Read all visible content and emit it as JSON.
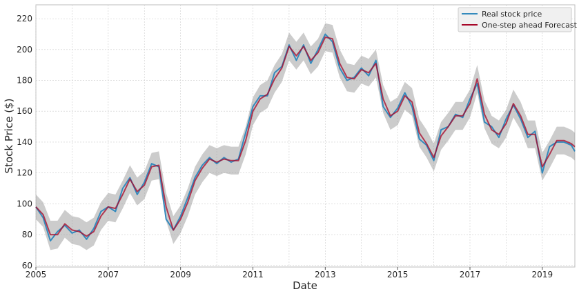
{
  "chart_data": {
    "type": "line",
    "xlabel": "Date",
    "ylabel": "Stock Price ($)",
    "ylim": [
      59,
      229
    ],
    "xlim": [
      2005.0,
      2019.9
    ],
    "grid": true,
    "legend_position": "top-right",
    "x_ticks": [
      "2005",
      "2007",
      "2009",
      "2011",
      "2013",
      "2015",
      "2017",
      "2019"
    ],
    "x_tick_values": [
      2005,
      2007,
      2009,
      2011,
      2013,
      2015,
      2017,
      2019
    ],
    "y_ticks": [
      "60",
      "80",
      "100",
      "120",
      "140",
      "160",
      "180",
      "200",
      "220"
    ],
    "y_tick_values": [
      60,
      80,
      100,
      120,
      140,
      160,
      180,
      200,
      220
    ],
    "series": [
      {
        "name": "Real stock price",
        "color": "#348abd",
        "x": [
          2005.0,
          2005.2,
          2005.4,
          2005.6,
          2005.8,
          2006.0,
          2006.2,
          2006.4,
          2006.6,
          2006.8,
          2007.0,
          2007.2,
          2007.4,
          2007.6,
          2007.8,
          2008.0,
          2008.2,
          2008.4,
          2008.6,
          2008.8,
          2009.0,
          2009.2,
          2009.4,
          2009.6,
          2009.8,
          2010.0,
          2010.2,
          2010.4,
          2010.6,
          2010.8,
          2011.0,
          2011.2,
          2011.4,
          2011.6,
          2011.8,
          2012.0,
          2012.2,
          2012.4,
          2012.6,
          2012.8,
          2013.0,
          2013.2,
          2013.4,
          2013.6,
          2013.8,
          2014.0,
          2014.2,
          2014.4,
          2014.6,
          2014.8,
          2015.0,
          2015.2,
          2015.4,
          2015.6,
          2015.8,
          2016.0,
          2016.2,
          2016.4,
          2016.6,
          2016.8,
          2017.0,
          2017.2,
          2017.4,
          2017.6,
          2017.8,
          2018.0,
          2018.2,
          2018.4,
          2018.6,
          2018.8,
          2019.0,
          2019.2,
          2019.4,
          2019.6,
          2019.8,
          2019.9
        ],
        "values": [
          98,
          91,
          76,
          82,
          86,
          81,
          83,
          77,
          84,
          95,
          98,
          95,
          110,
          117,
          106,
          114,
          126,
          124,
          90,
          83,
          92,
          104,
          117,
          125,
          130,
          126,
          130,
          127,
          129,
          146,
          163,
          170,
          170,
          185,
          189,
          203,
          193,
          203,
          191,
          200,
          210,
          205,
          188,
          180,
          182,
          188,
          183,
          193,
          163,
          156,
          162,
          172,
          163,
          142,
          138,
          128,
          148,
          150,
          158,
          156,
          168,
          178,
          153,
          150,
          143,
          155,
          164,
          155,
          143,
          147,
          120,
          137,
          140,
          140,
          138,
          134
        ]
      },
      {
        "name": "One-step ahead Forecast",
        "color": "#a60628",
        "x": [
          2005.0,
          2005.2,
          2005.4,
          2005.6,
          2005.8,
          2006.0,
          2006.2,
          2006.4,
          2006.6,
          2006.8,
          2007.0,
          2007.2,
          2007.4,
          2007.6,
          2007.8,
          2008.0,
          2008.2,
          2008.4,
          2008.6,
          2008.8,
          2009.0,
          2009.2,
          2009.4,
          2009.6,
          2009.8,
          2010.0,
          2010.2,
          2010.4,
          2010.6,
          2010.8,
          2011.0,
          2011.2,
          2011.4,
          2011.6,
          2011.8,
          2012.0,
          2012.2,
          2012.4,
          2012.6,
          2012.8,
          2013.0,
          2013.2,
          2013.4,
          2013.6,
          2013.8,
          2014.0,
          2014.2,
          2014.4,
          2014.6,
          2014.8,
          2015.0,
          2015.2,
          2015.4,
          2015.6,
          2015.8,
          2016.0,
          2016.2,
          2016.4,
          2016.6,
          2016.8,
          2017.0,
          2017.2,
          2017.4,
          2017.6,
          2017.8,
          2018.0,
          2018.2,
          2018.4,
          2018.6,
          2018.8,
          2019.0,
          2019.2,
          2019.4,
          2019.6,
          2019.8,
          2019.9
        ],
        "values": [
          98,
          93,
          80,
          80,
          87,
          83,
          82,
          79,
          82,
          92,
          98,
          97,
          106,
          116,
          108,
          112,
          124,
          125,
          98,
          83,
          90,
          101,
          115,
          123,
          129,
          127,
          129,
          128,
          128,
          141,
          160,
          168,
          171,
          181,
          188,
          202,
          196,
          202,
          193,
          198,
          208,
          207,
          191,
          182,
          181,
          187,
          185,
          191,
          168,
          157,
          160,
          170,
          166,
          146,
          139,
          130,
          144,
          150,
          157,
          157,
          165,
          181,
          158,
          148,
          145,
          152,
          165,
          157,
          145,
          145,
          124,
          132,
          141,
          141,
          139,
          137
        ]
      }
    ],
    "confidence_band": {
      "color": "#999999",
      "x": [
        2005.0,
        2005.2,
        2005.4,
        2005.6,
        2005.8,
        2006.0,
        2006.2,
        2006.4,
        2006.6,
        2006.8,
        2007.0,
        2007.2,
        2007.4,
        2007.6,
        2007.8,
        2008.0,
        2008.2,
        2008.4,
        2008.6,
        2008.8,
        2009.0,
        2009.2,
        2009.4,
        2009.6,
        2009.8,
        2010.0,
        2010.2,
        2010.4,
        2010.6,
        2010.8,
        2011.0,
        2011.2,
        2011.4,
        2011.6,
        2011.8,
        2012.0,
        2012.2,
        2012.4,
        2012.6,
        2012.8,
        2013.0,
        2013.2,
        2013.4,
        2013.6,
        2013.8,
        2014.0,
        2014.2,
        2014.4,
        2014.6,
        2014.8,
        2015.0,
        2015.2,
        2015.4,
        2015.6,
        2015.8,
        2016.0,
        2016.2,
        2016.4,
        2016.6,
        2016.8,
        2017.0,
        2017.2,
        2017.4,
        2017.6,
        2017.8,
        2018.0,
        2018.2,
        2018.4,
        2018.6,
        2018.8,
        2019.0,
        2019.2,
        2019.4,
        2019.6,
        2019.8,
        2019.9
      ],
      "lower": [
        90,
        85,
        70,
        71,
        78,
        74,
        73,
        70,
        73,
        83,
        89,
        88,
        97,
        107,
        99,
        103,
        115,
        116,
        89,
        74,
        81,
        92,
        106,
        114,
        120,
        118,
        120,
        119,
        119,
        132,
        151,
        159,
        162,
        172,
        179,
        193,
        187,
        193,
        184,
        189,
        199,
        198,
        182,
        173,
        172,
        178,
        176,
        182,
        159,
        148,
        151,
        161,
        157,
        137,
        130,
        121,
        135,
        141,
        148,
        148,
        156,
        172,
        149,
        139,
        136,
        143,
        156,
        148,
        136,
        136,
        115,
        123,
        132,
        132,
        130,
        128
      ],
      "upper": [
        106,
        101,
        89,
        89,
        96,
        92,
        91,
        88,
        91,
        101,
        107,
        106,
        115,
        125,
        117,
        121,
        133,
        134,
        107,
        92,
        99,
        110,
        124,
        132,
        138,
        136,
        138,
        137,
        137,
        150,
        169,
        177,
        180,
        190,
        197,
        211,
        205,
        211,
        202,
        207,
        217,
        216,
        200,
        191,
        190,
        196,
        194,
        200,
        177,
        166,
        169,
        179,
        175,
        155,
        148,
        139,
        153,
        159,
        166,
        166,
        174,
        190,
        167,
        157,
        154,
        161,
        174,
        166,
        154,
        154,
        133,
        141,
        150,
        150,
        148,
        146
      ]
    }
  }
}
